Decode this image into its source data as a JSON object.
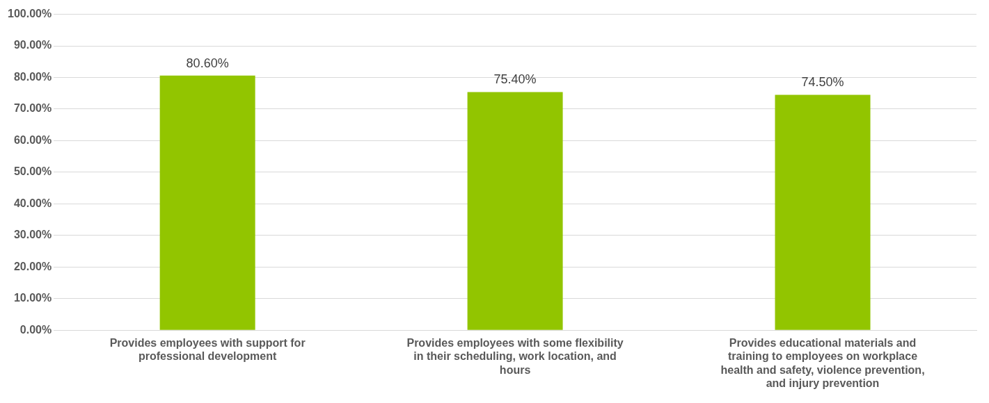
{
  "chart_data": {
    "type": "bar",
    "categories": [
      "Provides employees with support for professional development",
      "Provides employees with some flexibility in their scheduling, work location, and hours",
      "Provides educational materials and training to employees on workplace health and safety, violence prevention, and injury prevention"
    ],
    "values": [
      80.6,
      75.4,
      74.5
    ],
    "value_labels": [
      "80.60%",
      "75.40%",
      "74.50%"
    ],
    "color": "#92c500",
    "ylim": [
      0,
      100
    ],
    "yticks": [
      {
        "value": 0,
        "label": "0.00%"
      },
      {
        "value": 10,
        "label": "10.00%"
      },
      {
        "value": 20,
        "label": "20.00%"
      },
      {
        "value": 30,
        "label": "30.00%"
      },
      {
        "value": 40,
        "label": "40.00%"
      },
      {
        "value": 50,
        "label": "50.00%"
      },
      {
        "value": 60,
        "label": "60.00%"
      },
      {
        "value": 70,
        "label": "70.00%"
      },
      {
        "value": 80,
        "label": "80.00%"
      },
      {
        "value": 90,
        "label": "90.00%"
      },
      {
        "value": 100,
        "label": "100.00%"
      }
    ],
    "grid": "y",
    "legend": false
  }
}
